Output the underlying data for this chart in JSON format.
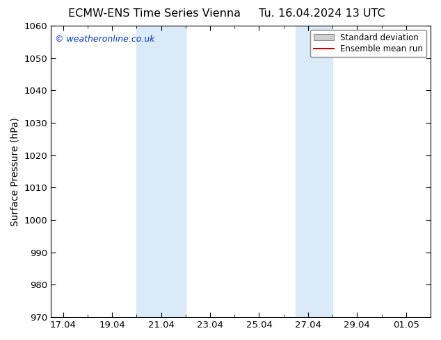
{
  "title_left": "ECMW-ENS Time Series Vienna",
  "title_right": "Tu. 16.04.2024 13 UTC",
  "ylabel": "Surface Pressure (hPa)",
  "ylim": [
    970,
    1060
  ],
  "yticks": [
    970,
    980,
    990,
    1000,
    1010,
    1020,
    1030,
    1040,
    1050,
    1060
  ],
  "xtick_labels": [
    "17.04",
    "19.04",
    "21.04",
    "23.04",
    "25.04",
    "27.04",
    "29.04",
    "01.05"
  ],
  "xtick_values": [
    0,
    2,
    4,
    6,
    8,
    10,
    12,
    14
  ],
  "xlim": [
    -0.5,
    15.0
  ],
  "shaded_regions": [
    {
      "x_start": 3.0,
      "x_end": 5.0,
      "color": "#daeaf8"
    },
    {
      "x_start": 9.5,
      "x_end": 11.0,
      "color": "#daeaf8"
    }
  ],
  "watermark_text": "© weatheronline.co.uk",
  "watermark_color": "#0033cc",
  "legend_std_label": "Standard deviation",
  "legend_mean_label": "Ensemble mean run",
  "legend_std_facecolor": "#d0d0d0",
  "legend_std_edgecolor": "#888888",
  "legend_mean_color": "#cc0000",
  "background_color": "#ffffff",
  "title_fontsize": 11.5,
  "tick_fontsize": 9.5,
  "ylabel_fontsize": 10
}
